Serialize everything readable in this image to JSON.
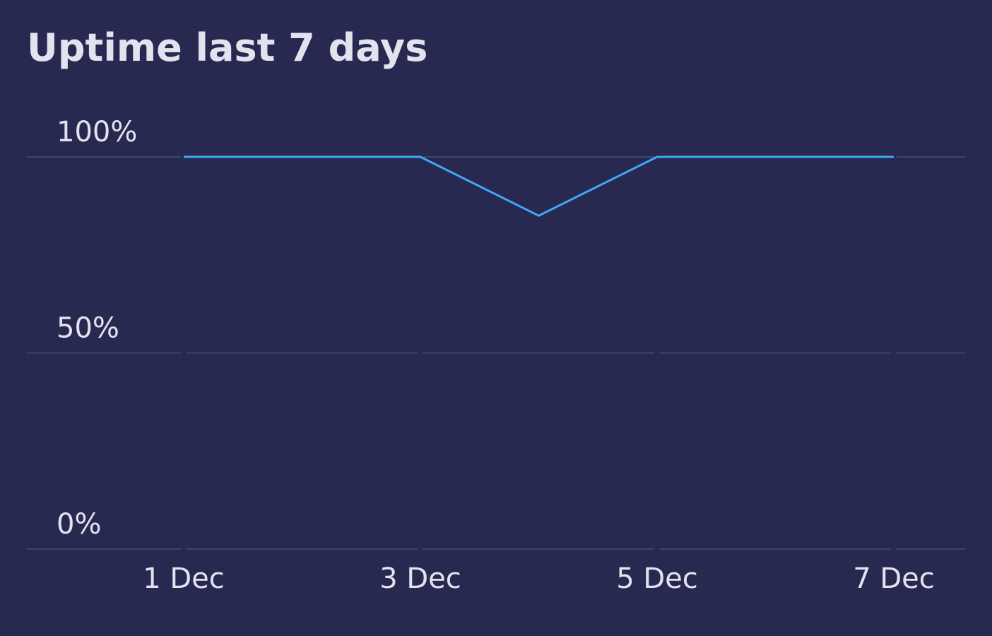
{
  "chart_data": {
    "type": "line",
    "title": "Uptime last 7 days",
    "categories": [
      "1 Dec",
      null,
      "3 Dec",
      null,
      "5 Dec",
      null,
      "7 Dec"
    ],
    "series": [
      {
        "name": "Uptime",
        "color": "#3fa9f5",
        "values": [
          100,
          100,
          100,
          85,
          100,
          100,
          100
        ]
      }
    ],
    "ylim": [
      0,
      100
    ],
    "yticks": [
      {
        "value": 0,
        "label": "0%"
      },
      {
        "value": 50,
        "label": "50%"
      },
      {
        "value": 100,
        "label": "100%"
      }
    ],
    "grid": true
  }
}
